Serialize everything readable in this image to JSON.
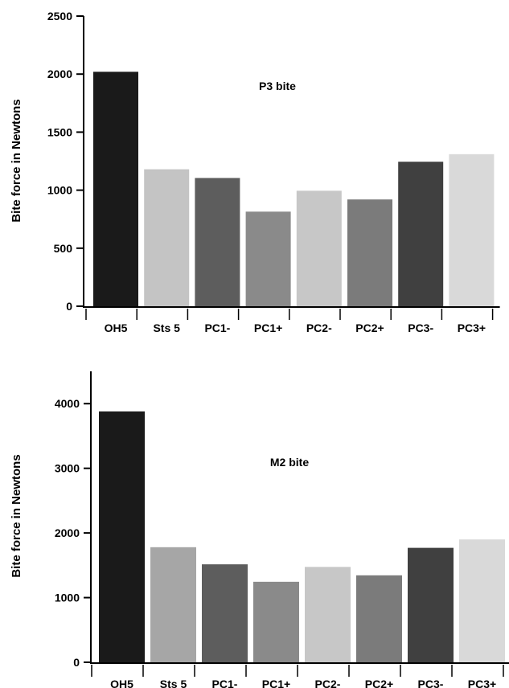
{
  "chart_data": [
    {
      "type": "bar",
      "title": "",
      "annotation": "P3 bite",
      "xlabel": "",
      "ylabel": "Bite force in Newtons",
      "ylim": [
        0,
        2500
      ],
      "yticks": [
        "0",
        "500",
        "1000",
        "1500",
        "2000",
        "2500"
      ],
      "categories": [
        "OH5",
        "Sts 5",
        "PC1-",
        "PC1+",
        "PC2-",
        "PC2+",
        "PC3-",
        "PC3+"
      ],
      "values": [
        2020,
        1180,
        1105,
        815,
        995,
        920,
        1245,
        1310
      ],
      "colors": [
        "#1a1a1a",
        "#c4c4c4",
        "#5d5d5d",
        "#8a8a8a",
        "#c7c7c7",
        "#7b7b7b",
        "#404040",
        "#d9d9d9"
      ],
      "grid": false,
      "legend": "none"
    },
    {
      "type": "bar",
      "title": "",
      "annotation": "M2 bite",
      "xlabel": "",
      "ylabel": "Bite force in Newtons",
      "ylim": [
        0,
        4500
      ],
      "yticks": [
        "0",
        "1000",
        "2000",
        "3000",
        "4000"
      ],
      "categories": [
        "OH5",
        "Sts 5",
        "PC1-",
        "PC1+",
        "PC2-",
        "PC2+",
        "PC3-",
        "PC3+"
      ],
      "values": [
        3880,
        1780,
        1515,
        1245,
        1475,
        1345,
        1770,
        1900
      ],
      "colors": [
        "#1a1a1a",
        "#a6a6a6",
        "#5d5d5d",
        "#8a8a8a",
        "#c7c7c7",
        "#7b7b7b",
        "#404040",
        "#d9d9d9"
      ],
      "grid": false,
      "legend": "none"
    }
  ]
}
